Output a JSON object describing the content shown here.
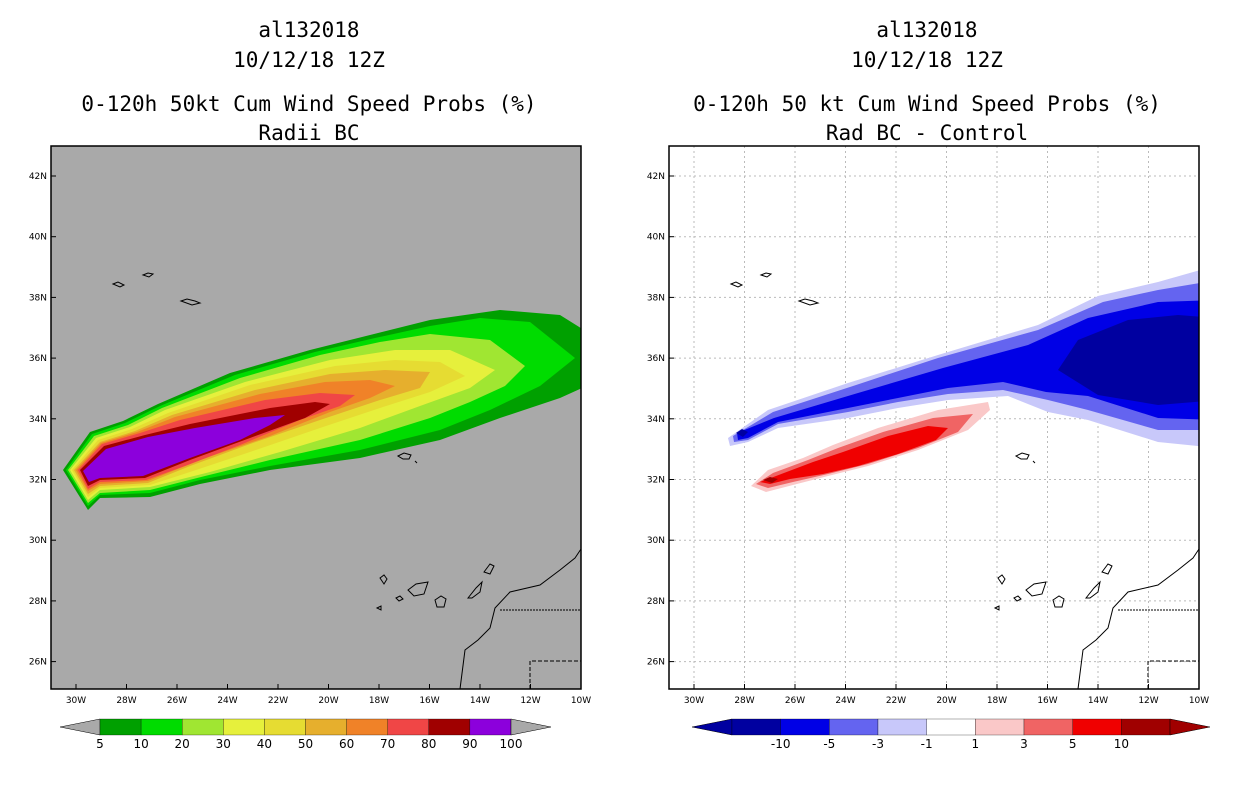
{
  "panels": [
    {
      "storm_id": "al132018",
      "date": "10/12/18 12Z",
      "title": "0-120h 50kt Cum Wind Speed Probs (%)",
      "subtitle": "Radii BC",
      "background_color": "#a9a9a9",
      "colorbar": {
        "colors": [
          "#00a000",
          "#00dc00",
          "#a0e632",
          "#e6f03c",
          "#e6dc32",
          "#e6af2d",
          "#f08228",
          "#f04646",
          "#a00000",
          "#8c00dc"
        ],
        "labels": [
          "5",
          "10",
          "20",
          "30",
          "40",
          "50",
          "60",
          "70",
          "80",
          "90",
          "100"
        ]
      }
    },
    {
      "storm_id": "al132018",
      "date": "10/12/18 12Z",
      "title": "0-120h 50 kt Cum Wind Speed Probs (%)",
      "subtitle": "Rad BC - Control",
      "background_color": "#ffffff",
      "colorbar": {
        "colors": [
          "#0000a0",
          "#0000e6",
          "#6464f0",
          "#c8c8fa",
          "#ffffff",
          "#fac8c8",
          "#f06464",
          "#f00000",
          "#a00000"
        ],
        "labels": [
          "-10",
          "-5",
          "-3",
          "-1",
          "1",
          "3",
          "5",
          "10"
        ]
      }
    }
  ],
  "axes": {
    "lat_labels": [
      "42N",
      "40N",
      "38N",
      "36N",
      "34N",
      "32N",
      "30N",
      "28N",
      "26N"
    ],
    "lon_labels": [
      "30W",
      "28W",
      "26W",
      "24W",
      "22W",
      "20W",
      "18W",
      "16W",
      "14W",
      "12W",
      "10W"
    ]
  }
}
